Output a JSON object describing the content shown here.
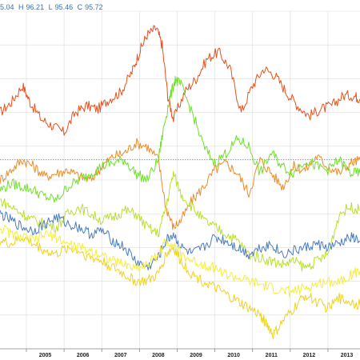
{
  "ohlc_readout": {
    "open": "5.04",
    "high_label": "H",
    "high": "96.21",
    "low_label": "L",
    "low": "95.46",
    "close_label": "C",
    "close": "95.72"
  },
  "colors": {
    "dark_orange": "#e8501c",
    "orange": "#f08a24",
    "green": "#6fe02a",
    "yellow_green": "#b8e030",
    "blue": "#4a7cc0",
    "yellow": "#f2d21a",
    "light_yellow": "#f4ee3a",
    "ref_line": "#4a8ab0",
    "grid": "#dddddd"
  },
  "chart_data": {
    "type": "line",
    "x_ticks": [
      "2005",
      "2006",
      "2007",
      "2008",
      "2009",
      "2010",
      "2011",
      "2012",
      "2013"
    ],
    "xlim": [
      2004.3,
      2013.85
    ],
    "ylim": [
      0,
      100
    ],
    "grid": true,
    "reference_line": 56,
    "series": [
      {
        "color": "dark_orange",
        "x": [
          2004.3,
          2004.6,
          2004.9,
          2005.1,
          2005.4,
          2005.7,
          2006.0,
          2006.3,
          2006.6,
          2006.9,
          2007.2,
          2007.5,
          2007.8,
          2008.0,
          2008.2,
          2008.45,
          2008.6,
          2008.75,
          2008.9,
          2009.2,
          2009.5,
          2009.8,
          2010.1,
          2010.4,
          2010.7,
          2011.0,
          2011.3,
          2011.6,
          2011.9,
          2012.2,
          2012.5,
          2012.8,
          2013.1,
          2013.4,
          2013.7,
          2013.85
        ],
        "y": [
          70,
          73,
          78,
          73,
          68,
          66,
          64,
          70,
          72,
          71,
          74,
          76,
          82,
          88,
          93,
          95,
          90,
          75,
          68,
          76,
          80,
          86,
          88,
          83,
          70,
          78,
          83,
          81,
          76,
          72,
          69,
          71,
          72,
          75,
          75,
          74
        ]
      },
      {
        "color": "orange",
        "x": [
          2004.3,
          2004.6,
          2004.9,
          2005.2,
          2005.5,
          2005.8,
          2006.1,
          2006.4,
          2006.7,
          2007.0,
          2007.3,
          2007.6,
          2007.9,
          2008.2,
          2008.5,
          2008.7,
          2008.9,
          2009.1,
          2009.4,
          2009.7,
          2010.0,
          2010.3,
          2010.6,
          2010.9,
          2011.2,
          2011.5,
          2011.8,
          2012.1,
          2012.4,
          2012.7,
          2013.0,
          2013.3,
          2013.6,
          2013.85
        ],
        "y": [
          50,
          53,
          56,
          54,
          51,
          52,
          53,
          51,
          50,
          54,
          57,
          58,
          61,
          60,
          56,
          42,
          36,
          38,
          44,
          48,
          53,
          55,
          52,
          46,
          56,
          52,
          48,
          54,
          53,
          57,
          54,
          52,
          55,
          56
        ]
      },
      {
        "color": "green",
        "x": [
          2004.3,
          2004.6,
          2004.9,
          2005.2,
          2005.5,
          2005.8,
          2006.1,
          2006.4,
          2006.7,
          2007.0,
          2007.3,
          2007.6,
          2007.9,
          2008.2,
          2008.5,
          2008.65,
          2008.8,
          2008.95,
          2009.1,
          2009.4,
          2009.7,
          2010.0,
          2010.3,
          2010.6,
          2010.9,
          2011.2,
          2011.5,
          2011.8,
          2012.1,
          2012.4,
          2012.7,
          2013.0,
          2013.3,
          2013.6,
          2013.85
        ],
        "y": [
          47,
          49,
          48,
          47,
          45,
          44,
          48,
          50,
          52,
          54,
          55,
          56,
          52,
          50,
          56,
          66,
          74,
          80,
          78,
          70,
          60,
          55,
          58,
          62,
          60,
          52,
          58,
          54,
          52,
          56,
          54,
          53,
          56,
          52,
          52
        ]
      },
      {
        "color": "yellow_green",
        "x": [
          2004.3,
          2004.6,
          2004.9,
          2005.2,
          2005.5,
          2005.8,
          2006.1,
          2006.4,
          2006.7,
          2007.0,
          2007.3,
          2007.6,
          2007.9,
          2008.2,
          2008.5,
          2008.7,
          2008.9,
          2009.1,
          2009.4,
          2009.7,
          2010.0,
          2010.3,
          2010.6,
          2010.9,
          2011.2,
          2011.5,
          2011.8,
          2012.1,
          2012.4,
          2012.7,
          2013.0,
          2013.3,
          2013.6,
          2013.85
        ],
        "y": [
          44,
          42,
          40,
          38,
          37,
          36,
          40,
          42,
          40,
          38,
          39,
          41,
          40,
          36,
          34,
          42,
          52,
          46,
          42,
          38,
          36,
          34,
          32,
          28,
          27,
          26,
          25,
          26,
          24,
          26,
          28,
          40,
          42,
          41
        ]
      },
      {
        "color": "blue",
        "x": [
          2004.3,
          2004.6,
          2004.9,
          2005.2,
          2005.5,
          2005.8,
          2006.1,
          2006.4,
          2006.7,
          2007.0,
          2007.3,
          2007.6,
          2007.9,
          2008.2,
          2008.5,
          2008.7,
          2008.9,
          2009.1,
          2009.4,
          2009.7,
          2010.0,
          2010.3,
          2010.6,
          2010.9,
          2011.2,
          2011.5,
          2011.8,
          2012.1,
          2012.4,
          2012.7,
          2013.0,
          2013.3,
          2013.6,
          2013.85
        ],
        "y": [
          40,
          38,
          36,
          35,
          37,
          39,
          37,
          36,
          34,
          35,
          32,
          30,
          26,
          24,
          27,
          32,
          34,
          30,
          28,
          30,
          33,
          32,
          30,
          28,
          30,
          31,
          28,
          29,
          30,
          31,
          30,
          31,
          33,
          32
        ]
      },
      {
        "color": "yellow",
        "x": [
          2004.3,
          2004.6,
          2004.9,
          2005.2,
          2005.5,
          2005.8,
          2006.1,
          2006.4,
          2006.7,
          2007.0,
          2007.3,
          2007.6,
          2007.9,
          2008.2,
          2008.5,
          2008.7,
          2008.9,
          2009.1,
          2009.4,
          2009.7,
          2010.0,
          2010.3,
          2010.6,
          2010.9,
          2011.2,
          2011.4,
          2011.55,
          2011.8,
          2012.1,
          2012.4,
          2012.7,
          2013.0,
          2013.3,
          2013.6,
          2013.85
        ],
        "y": [
          32,
          31,
          33,
          31,
          29,
          28,
          30,
          29,
          27,
          26,
          24,
          22,
          20,
          20,
          22,
          28,
          30,
          26,
          22,
          20,
          18,
          16,
          14,
          12,
          10,
          7,
          4,
          8,
          12,
          16,
          14,
          12,
          15,
          14,
          13
        ]
      },
      {
        "color": "light_yellow",
        "x": [
          2004.3,
          2004.6,
          2004.9,
          2005.2,
          2005.5,
          2005.8,
          2006.1,
          2006.4,
          2006.7,
          2007.0,
          2007.3,
          2007.6,
          2007.9,
          2008.2,
          2008.5,
          2008.7,
          2008.9,
          2009.1,
          2009.4,
          2009.7,
          2010.0,
          2010.3,
          2010.6,
          2010.9,
          2011.2,
          2011.5,
          2011.8,
          2012.1,
          2012.4,
          2012.7,
          2013.0,
          2013.3,
          2013.6,
          2013.85
        ],
        "y": [
          36,
          34,
          33,
          32,
          34,
          33,
          31,
          30,
          29,
          28,
          26,
          25,
          24,
          25,
          28,
          32,
          31,
          28,
          26,
          25,
          24,
          22,
          21,
          20,
          19,
          18,
          17,
          17,
          18,
          19,
          20,
          20,
          22,
          23
        ]
      }
    ]
  }
}
